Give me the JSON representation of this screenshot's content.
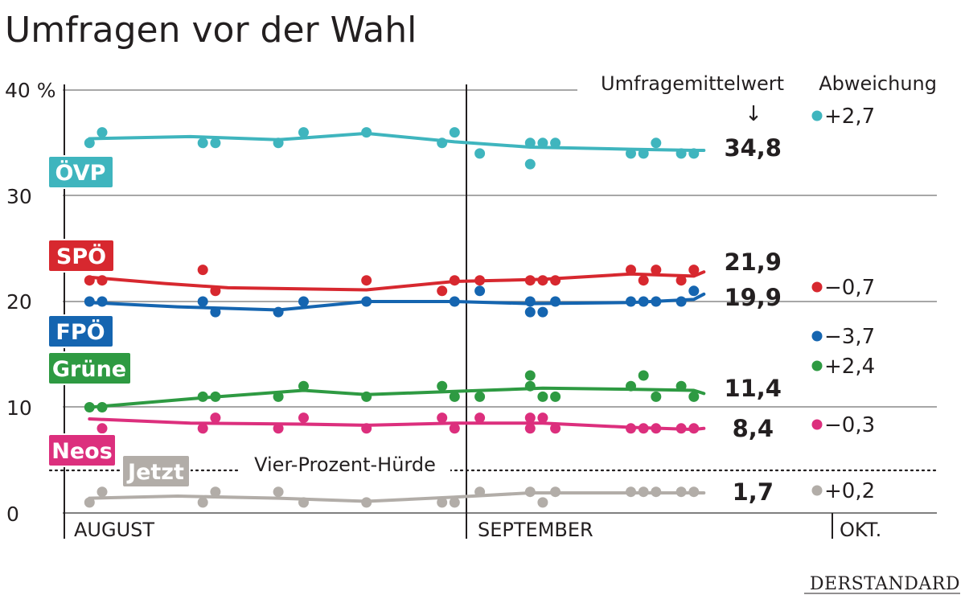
{
  "chart_data": {
    "type": "line",
    "title": "Umfragen vor der Wahl",
    "y_unit": "%",
    "ylim": [
      0,
      40
    ],
    "y_ticks": [
      {
        "value": 40,
        "label": "40 %"
      },
      {
        "value": 30,
        "label": "30"
      },
      {
        "value": 20,
        "label": "20"
      },
      {
        "value": 10,
        "label": "10"
      },
      {
        "value": 0,
        "label": "0"
      }
    ],
    "xlim_days": [
      0,
      61
    ],
    "months": [
      {
        "label": "AUGUST",
        "day": 0
      },
      {
        "label": "SEPTEMBER",
        "day": 31
      },
      {
        "label": "OKT.",
        "day": 59.5
      }
    ],
    "header_average": "Umfragemittelwert",
    "header_deviation": "Abweichung",
    "arrow_glyph": "↓",
    "hurdle": {
      "value": 4,
      "label": "Vier-Prozent-Hürde"
    },
    "series": [
      {
        "name": "ÖVP",
        "color": "#3fb5be",
        "average_label": "34,8",
        "deviation": "+2,7",
        "trend": [
          [
            2,
            35.4
          ],
          [
            10,
            35.6
          ],
          [
            17,
            35.3
          ],
          [
            24,
            35.9
          ],
          [
            31,
            35.1
          ],
          [
            37,
            34.6
          ],
          [
            45,
            34.4
          ],
          [
            50,
            34.3
          ],
          [
            50.8,
            34.3
          ]
        ],
        "points": [
          [
            2,
            35
          ],
          [
            3,
            36
          ],
          [
            11,
            35
          ],
          [
            12,
            35
          ],
          [
            17,
            35
          ],
          [
            19,
            36
          ],
          [
            24,
            36
          ],
          [
            30,
            35
          ],
          [
            31,
            36
          ],
          [
            33,
            34
          ],
          [
            37,
            33
          ],
          [
            37,
            35
          ],
          [
            38,
            35
          ],
          [
            39,
            35
          ],
          [
            45,
            34
          ],
          [
            46,
            34
          ],
          [
            47,
            35
          ],
          [
            49,
            34
          ],
          [
            50,
            34
          ]
        ]
      },
      {
        "name": "SPÖ",
        "color": "#d7282f",
        "average_label": "21,9",
        "deviation": "−0,7",
        "trend": [
          [
            2,
            22.3
          ],
          [
            8,
            21.7
          ],
          [
            13,
            21.3
          ],
          [
            24,
            21.1
          ],
          [
            31,
            21.9
          ],
          [
            38,
            22.1
          ],
          [
            45,
            22.6
          ],
          [
            50,
            22.4
          ],
          [
            50.8,
            22.8
          ]
        ],
        "points": [
          [
            2,
            22
          ],
          [
            3,
            22
          ],
          [
            11,
            23
          ],
          [
            12,
            21
          ],
          [
            24,
            22
          ],
          [
            30,
            21
          ],
          [
            31,
            22
          ],
          [
            33,
            22
          ],
          [
            37,
            22
          ],
          [
            38,
            22
          ],
          [
            39,
            22
          ],
          [
            45,
            23
          ],
          [
            46,
            22
          ],
          [
            47,
            23
          ],
          [
            49,
            22
          ],
          [
            50,
            23
          ]
        ]
      },
      {
        "name": "FPÖ",
        "color": "#1565b0",
        "average_label": "19,9",
        "deviation": "−3,7",
        "trend": [
          [
            2,
            19.9
          ],
          [
            9,
            19.5
          ],
          [
            17,
            19.2
          ],
          [
            24,
            20.0
          ],
          [
            31,
            20.0
          ],
          [
            37,
            19.8
          ],
          [
            45,
            19.9
          ],
          [
            50,
            20.2
          ],
          [
            50.8,
            20.7
          ]
        ],
        "points": [
          [
            2,
            20
          ],
          [
            3,
            20
          ],
          [
            11,
            20
          ],
          [
            12,
            19
          ],
          [
            17,
            19
          ],
          [
            19,
            20
          ],
          [
            24,
            20
          ],
          [
            31,
            20
          ],
          [
            33,
            21
          ],
          [
            37,
            19
          ],
          [
            37,
            20
          ],
          [
            38,
            19
          ],
          [
            39,
            20
          ],
          [
            45,
            20
          ],
          [
            46,
            20
          ],
          [
            47,
            20
          ],
          [
            49,
            20
          ],
          [
            50,
            21
          ]
        ]
      },
      {
        "name": "Grüne",
        "color": "#2e9a42",
        "average_label": "11,4",
        "deviation": "+2,4",
        "trend": [
          [
            2,
            10.0
          ],
          [
            3,
            10.1
          ],
          [
            11,
            10.9
          ],
          [
            19,
            11.6
          ],
          [
            24,
            11.2
          ],
          [
            31,
            11.5
          ],
          [
            38,
            11.8
          ],
          [
            45,
            11.7
          ],
          [
            50,
            11.6
          ],
          [
            50.8,
            11.3
          ]
        ],
        "points": [
          [
            2,
            10
          ],
          [
            3,
            10
          ],
          [
            11,
            11
          ],
          [
            12,
            11
          ],
          [
            17,
            11
          ],
          [
            19,
            12
          ],
          [
            24,
            11
          ],
          [
            30,
            12
          ],
          [
            31,
            11
          ],
          [
            33,
            11
          ],
          [
            37,
            12
          ],
          [
            37,
            13
          ],
          [
            38,
            11
          ],
          [
            39,
            11
          ],
          [
            45,
            12
          ],
          [
            46,
            13
          ],
          [
            47,
            11
          ],
          [
            49,
            12
          ],
          [
            50,
            11
          ]
        ]
      },
      {
        "name": "Neos",
        "color": "#dc2f7d",
        "average_label": "8,4",
        "deviation": "−0,3",
        "trend": [
          [
            2,
            8.9
          ],
          [
            10,
            8.5
          ],
          [
            19,
            8.4
          ],
          [
            24,
            8.3
          ],
          [
            31,
            8.5
          ],
          [
            38,
            8.5
          ],
          [
            45,
            8.1
          ],
          [
            50,
            7.9
          ],
          [
            50.8,
            8.0
          ]
        ],
        "points": [
          [
            3,
            8
          ],
          [
            11,
            8
          ],
          [
            12,
            9
          ],
          [
            17,
            8
          ],
          [
            19,
            9
          ],
          [
            24,
            8
          ],
          [
            30,
            9
          ],
          [
            31,
            8
          ],
          [
            33,
            9
          ],
          [
            37,
            8
          ],
          [
            37,
            9
          ],
          [
            38,
            9
          ],
          [
            39,
            8
          ],
          [
            45,
            8
          ],
          [
            46,
            8
          ],
          [
            47,
            8
          ],
          [
            49,
            8
          ],
          [
            50,
            8
          ]
        ]
      },
      {
        "name": "Jetzt",
        "color": "#b2ada8",
        "average_label": "1,7",
        "deviation": "+0,2",
        "trend": [
          [
            2,
            1.4
          ],
          [
            9,
            1.6
          ],
          [
            17,
            1.4
          ],
          [
            24,
            1.1
          ],
          [
            31,
            1.5
          ],
          [
            37,
            1.9
          ],
          [
            45,
            1.9
          ],
          [
            50,
            1.9
          ],
          [
            50.8,
            1.9
          ]
        ],
        "points": [
          [
            2,
            1
          ],
          [
            3,
            2
          ],
          [
            11,
            1
          ],
          [
            12,
            2
          ],
          [
            17,
            2
          ],
          [
            19,
            1
          ],
          [
            24,
            1
          ],
          [
            30,
            1
          ],
          [
            31,
            1
          ],
          [
            33,
            2
          ],
          [
            37,
            2
          ],
          [
            38,
            1
          ],
          [
            39,
            2
          ],
          [
            45,
            2
          ],
          [
            46,
            2
          ],
          [
            47,
            2
          ],
          [
            49,
            2
          ],
          [
            50,
            2
          ]
        ]
      }
    ]
  },
  "brand": "DERSTANDARD"
}
